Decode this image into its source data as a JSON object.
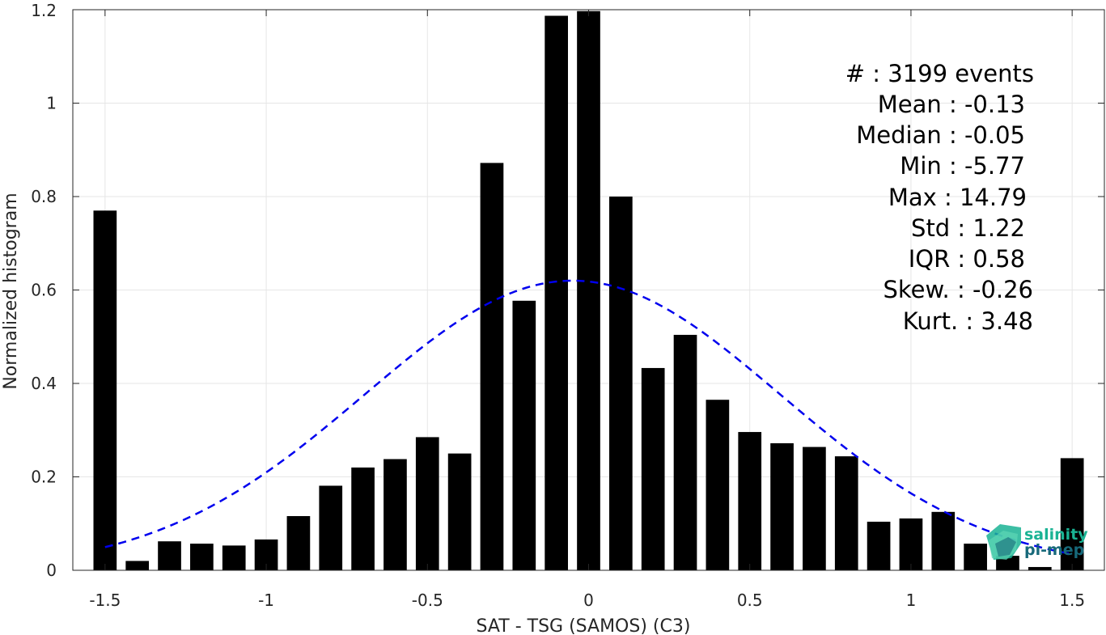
{
  "chart_data": {
    "type": "bar",
    "xlabel": "SAT - TSG (SAMOS) (C3)",
    "ylabel": "Normalized histogram",
    "xlim": [
      -1.6,
      1.6
    ],
    "ylim": [
      0,
      1.2
    ],
    "xticks": [
      -1.5,
      -1,
      -0.5,
      0,
      0.5,
      1,
      1.5
    ],
    "xtick_labels": [
      "-1.5",
      "-1",
      "-0.5",
      "0",
      "0.5",
      "1",
      "1.5"
    ],
    "yticks": [
      0,
      0.2,
      0.4,
      0.6,
      0.8,
      1,
      1.2
    ],
    "ytick_labels": [
      "0",
      "0.2",
      "0.4",
      "0.6",
      "0.8",
      "1",
      "1.2"
    ],
    "grid": true,
    "bar_color": "#000000",
    "x": [
      -1.5,
      -1.4,
      -1.3,
      -1.2,
      -1.1,
      -1.0,
      -0.9,
      -0.8,
      -0.7,
      -0.6,
      -0.5,
      -0.4,
      -0.3,
      -0.2,
      -0.1,
      0.0,
      0.1,
      0.2,
      0.3,
      0.4,
      0.5,
      0.6,
      0.7,
      0.8,
      0.9,
      1.0,
      1.1,
      1.2,
      1.3,
      1.4,
      1.5
    ],
    "values": [
      0.77,
      0.02,
      0.062,
      0.057,
      0.053,
      0.066,
      0.116,
      0.181,
      0.22,
      0.238,
      0.285,
      0.25,
      0.872,
      0.577,
      1.187,
      1.197,
      0.8,
      0.433,
      0.504,
      0.365,
      0.296,
      0.272,
      0.264,
      0.244,
      0.104,
      0.111,
      0.125,
      0.057,
      0.031,
      0.007,
      0.24
    ],
    "fit_curve": {
      "style": "dashed",
      "color": "#0000ee",
      "mean": -0.05,
      "std": 0.645,
      "x_range": [
        -1.5,
        1.5
      ],
      "peak": 0.62
    },
    "annotations": [
      "#  : 3199 events",
      "Mean : -0.13",
      "Median : -0.05",
      "Min : -5.77",
      "Max : 14.79",
      "Std : 1.22",
      "IQR : 0.58",
      "Skew. : -0.26",
      "Kurt. : 3.48"
    ]
  },
  "logo": {
    "line1": "salinity",
    "line2": "pi-mep",
    "color1": "#1ab394",
    "color2": "#17697a"
  }
}
